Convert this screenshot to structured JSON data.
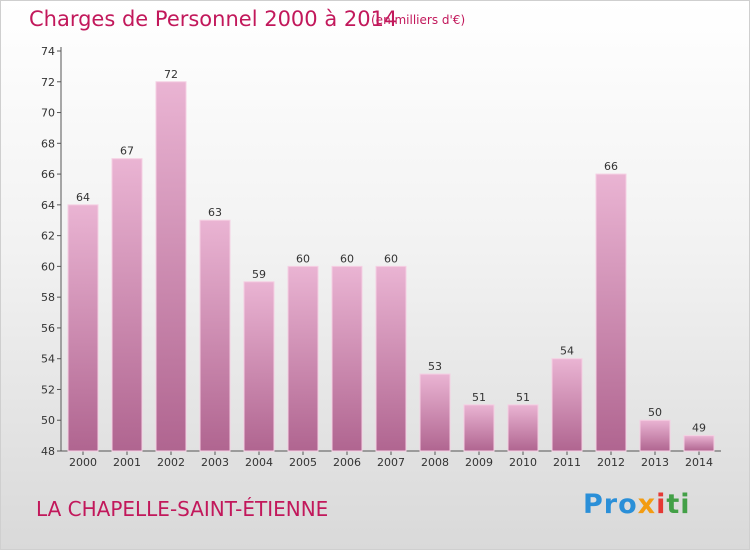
{
  "header": {
    "title": "Charges de Personnel 2000 à 2014",
    "subtitle": "(en milliers d'€)"
  },
  "footer": {
    "commune": "LA CHAPELLE-SAINT-ÉTIENNE",
    "logo_text": "Proxiti",
    "logo_parts": [
      "Pro",
      "x",
      "i",
      "ti"
    ]
  },
  "colors": {
    "title": "#c2185b",
    "bar_light": "#eab4d3",
    "bar_dark": "#b06590"
  },
  "chart_data": {
    "type": "bar",
    "title": "Charges de Personnel 2000 à 2014",
    "subtitle": "(en milliers d'€)",
    "xlabel": "",
    "ylabel": "",
    "categories": [
      "2000",
      "2001",
      "2002",
      "2003",
      "2004",
      "2005",
      "2006",
      "2007",
      "2008",
      "2009",
      "2010",
      "2011",
      "2012",
      "2013",
      "2014"
    ],
    "values": [
      64,
      67,
      72,
      63,
      59,
      60,
      60,
      60,
      53,
      51,
      51,
      54,
      66,
      50,
      49
    ],
    "ylim": [
      48,
      74
    ],
    "yticks": [
      48,
      50,
      52,
      54,
      56,
      58,
      60,
      62,
      64,
      66,
      68,
      70,
      72,
      74
    ],
    "grid": false,
    "legend": "none"
  }
}
